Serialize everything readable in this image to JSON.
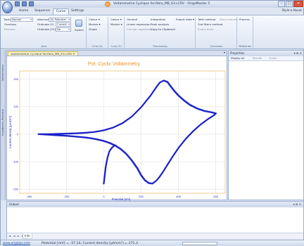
{
  "window": {
    "title": "Voltammetrie Cyclique ferrifero_MB_03.LCRV - OrigoMaster 5"
  },
  "ribbon": {
    "tabs": [
      "Home",
      "Sequence",
      "Curve",
      "Settings"
    ],
    "active_tab": "Curve",
    "style_about": "Style ▾  About",
    "groups": {
      "axis": {
        "label": "Axis",
        "type_label": "Type:",
        "type_value": "Normal",
        "abscissa_label": "Abscissa",
        "abscissa_value": "(X) Potential",
        "ordinate1_label": "Ordinate (Y)",
        "ordinate1_value": "Current",
        "ordinate2_label": "Ordinate (Y2)",
        "ordinate2_value": "No",
        "overlay_label": "Overlays",
        "remove_label": "Remove",
        "button_label": "Switch"
      },
      "line": {
        "label": "Line (X)",
        "colour": "Colour ▾",
        "marker": "Marker ▾",
        "graph": "Graph"
      },
      "line2": {
        "label": "Line (Y)",
        "colour": "Colour ▾",
        "marker": "Marker ▾"
      },
      "processing": {
        "label": "Processing",
        "general": "General",
        "linear_regression": "Linear regression",
        "circular_regression": "Circular regression",
        "integration": "Integration",
        "peak_analysis": "Peak analysis",
        "copy_clipboard": "Copy to Clipboard",
        "export_data": "Export data ▾"
      },
      "corrosion": {
        "label": "Corrosion",
        "tafel": "Tafel method",
        "zero_analysis": "Zero analysis",
        "stern": "2nd Stern method",
        "point": "Evans point"
      },
      "batteries": {
        "label": "Batteries",
        "process": "Process"
      }
    }
  },
  "sidebar": {
    "labels": [
      "Voltammetry",
      "Impedance_Potential"
    ]
  },
  "document": {
    "tab_label": "Voltammetrie Cyclique ferrifero_MB_03.LCRV"
  },
  "properties": {
    "title": "Properties",
    "display_all": "Display all",
    "results": "Results",
    "graph": "Graph"
  },
  "output": {
    "title": "Output",
    "tab": "Info",
    "nav": "◄ ◄ ► ►"
  },
  "statusbar": {
    "link": "www.origalys.com",
    "text": "Potential [mV] = -37.14, Current density [µA/cm²] = 271.3"
  },
  "chart_data": {
    "type": "line",
    "title": "Pot. Cyclic Voltammetry",
    "xlabel": "Potential [mV]",
    "ylabel": "Current density [µA/cm²]",
    "xlim": [
      -450,
      650
    ],
    "ylim": [
      -215,
      230
    ],
    "xticks": [
      -400,
      -200,
      0,
      200,
      400,
      600
    ],
    "yticks": [
      -200,
      -100,
      0,
      100,
      200
    ],
    "grid": true,
    "series_color": "#1b22c8",
    "series": [
      {
        "x": [
          -350,
          -300,
          -250,
          -200,
          -150,
          -100,
          -50,
          0,
          50,
          100,
          150,
          200,
          250,
          280,
          300,
          320,
          340,
          360,
          380,
          400,
          430,
          460,
          500,
          540,
          580,
          600,
          590,
          560,
          520,
          480,
          440,
          400,
          370,
          340,
          320,
          300,
          280,
          260,
          240,
          220,
          200,
          180,
          150,
          120,
          90,
          60,
          30,
          0,
          -30,
          -60,
          -100,
          -150,
          -200,
          -250,
          -300,
          -350
        ],
        "y": [
          0,
          0,
          1,
          2,
          3,
          5,
          8,
          14,
          24,
          40,
          64,
          98,
          140,
          170,
          188,
          195,
          190,
          172,
          155,
          140,
          122,
          107,
          93,
          84,
          79,
          75,
          69,
          56,
          36,
          12,
          -16,
          -50,
          -80,
          -112,
          -134,
          -154,
          -170,
          -180,
          -178,
          -168,
          -150,
          -125,
          -96,
          -72,
          -54,
          -41,
          -32,
          -25,
          -20,
          -16,
          -12,
          -9,
          -6,
          -4,
          -2,
          0
        ]
      },
      {
        "x": [
          0,
          5,
          10,
          20,
          30,
          45,
          60
        ],
        "y": [
          -180,
          -150,
          -120,
          -85,
          -62,
          -48,
          -40
        ]
      }
    ]
  }
}
